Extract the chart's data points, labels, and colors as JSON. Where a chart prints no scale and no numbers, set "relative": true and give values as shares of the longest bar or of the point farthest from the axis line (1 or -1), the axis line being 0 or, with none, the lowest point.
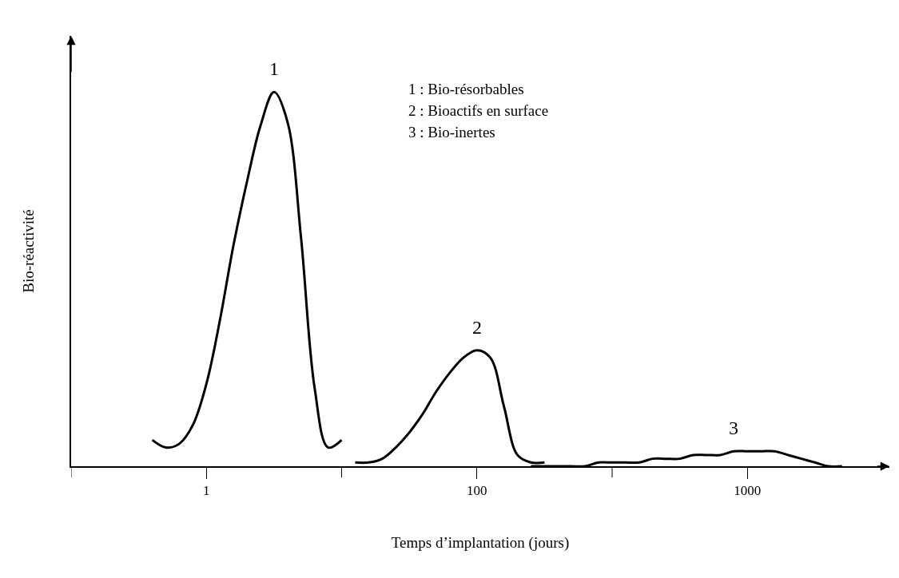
{
  "chart_data": {
    "type": "line",
    "relative": true,
    "xlabel": "Temps d’implantation (jours)",
    "ylabel": "Bio-réactivité",
    "categories": [
      null,
      null,
      null,
      null,
      null,
      null,
      null,
      null,
      null,
      null,
      "1",
      null,
      null,
      null,
      null,
      null,
      null,
      null,
      null,
      null,
      null,
      null,
      null,
      null,
      null,
      null,
      null,
      null,
      null,
      null,
      "100",
      null,
      null,
      null,
      null,
      null,
      null,
      null,
      null,
      null,
      null,
      null,
      null,
      null,
      null,
      null,
      null,
      null,
      null,
      null,
      "1000",
      null,
      null,
      null,
      null,
      null,
      null,
      null,
      null,
      null,
      null
    ],
    "series": [
      {
        "name": "1",
        "color": "#000000",
        "values": [
          null,
          null,
          null,
          null,
          null,
          null,
          0.07,
          0.05,
          0.06,
          0.11,
          0.22,
          0.39,
          0.59,
          0.76,
          0.91,
          1,
          0.92,
          0.61,
          0.21,
          0.05,
          0.07,
          null,
          null,
          null,
          null,
          null,
          null,
          null,
          null,
          null,
          null,
          null,
          null,
          null,
          null,
          null,
          null,
          null,
          null,
          null,
          null,
          null,
          null,
          null,
          null,
          null,
          null,
          null,
          null,
          null,
          null,
          null,
          null,
          null,
          null,
          null,
          null,
          null,
          null,
          null,
          null
        ]
      },
      {
        "name": "2",
        "color": "#000000",
        "values": [
          null,
          null,
          null,
          null,
          null,
          null,
          null,
          null,
          null,
          null,
          null,
          null,
          null,
          null,
          null,
          null,
          null,
          null,
          null,
          null,
          null,
          0.01,
          0.01,
          0.02,
          0.05,
          0.09,
          0.14,
          0.2,
          0.25,
          0.29,
          0.31,
          0.29,
          0.16,
          0.03,
          0.01,
          0.01,
          null,
          null,
          null,
          null,
          null,
          null,
          null,
          null,
          null,
          null,
          null,
          null,
          null,
          null,
          null,
          null,
          null,
          null,
          null,
          null,
          null,
          null,
          null,
          null,
          null
        ]
      },
      {
        "name": "3",
        "color": "#000000",
        "values": [
          null,
          null,
          null,
          null,
          null,
          null,
          null,
          null,
          null,
          null,
          null,
          null,
          null,
          null,
          null,
          null,
          null,
          null,
          null,
          null,
          null,
          null,
          null,
          null,
          null,
          null,
          null,
          null,
          null,
          null,
          null,
          null,
          null,
          null,
          0,
          0,
          0,
          0,
          0,
          0.01,
          0.01,
          0.01,
          0.01,
          0.02,
          0.02,
          0.02,
          0.03,
          0.03,
          0.03,
          0.04,
          0.04,
          0.04,
          0.04,
          0.03,
          0.02,
          0.01,
          0,
          0,
          null,
          null,
          null
        ]
      }
    ],
    "annotations": [
      "1 : Bio-résorbables",
      "2 : Bioactifs en surface",
      "3 : Bio-inertes"
    ],
    "grid": false,
    "legend": false,
    "marker": "none",
    "line_style": "solid"
  }
}
